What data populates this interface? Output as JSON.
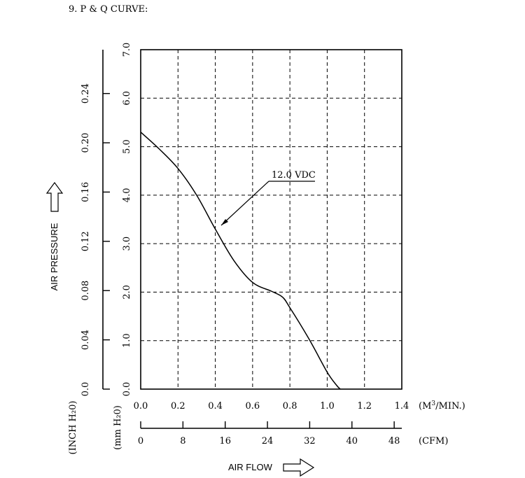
{
  "heading": "9. P & Q CURVE:",
  "chart_data": {
    "type": "line",
    "x_unit_label_prefix": "(M",
    "x_unit_label_sup": "3",
    "x_unit_label_suffix": "/MIN.)",
    "x_ticks": [
      "0.0",
      "0.2",
      "0.4",
      "0.6",
      "0.8",
      "1.0",
      "1.2",
      "1.4"
    ],
    "xlim": [
      0,
      1.4
    ],
    "cfm_ticks": [
      "0",
      "8",
      "16",
      "24",
      "32",
      "40",
      "48"
    ],
    "cfm_values": [
      0,
      8,
      16,
      24,
      32,
      40,
      48
    ],
    "cfm_unit_label": "(CFM)",
    "xlabel": "AIR FLOW",
    "y_mm_ticks": [
      "0.0",
      "1.0",
      "2.0",
      "3.0",
      "4.0",
      "5.0",
      "6.0",
      "7.0"
    ],
    "ylim": [
      0,
      7
    ],
    "y_mm_unit_label": "(mm H₂0)",
    "y_inch_ticks": [
      "0.0",
      "0.04",
      "0.08",
      "0.12",
      "0.16",
      "0.20",
      "0.24"
    ],
    "y_inch_values": [
      0,
      0.04,
      0.08,
      0.12,
      0.16,
      0.2,
      0.24
    ],
    "y_inch_unit_label": "(INCH H₂0)",
    "ylabel": "AIR PRESSURE",
    "grid": true,
    "annotation": "12.0 VDC",
    "series": [
      {
        "name": "12.0 VDC",
        "x": [
          0.0,
          0.1,
          0.2,
          0.3,
          0.4,
          0.5,
          0.6,
          0.7,
          0.76,
          0.8,
          0.9,
          1.0,
          1.05,
          1.07
        ],
        "y": [
          5.3,
          4.95,
          4.55,
          4.0,
          3.3,
          2.65,
          2.2,
          2.02,
          1.9,
          1.68,
          1.05,
          0.35,
          0.08,
          0.0
        ]
      }
    ]
  }
}
